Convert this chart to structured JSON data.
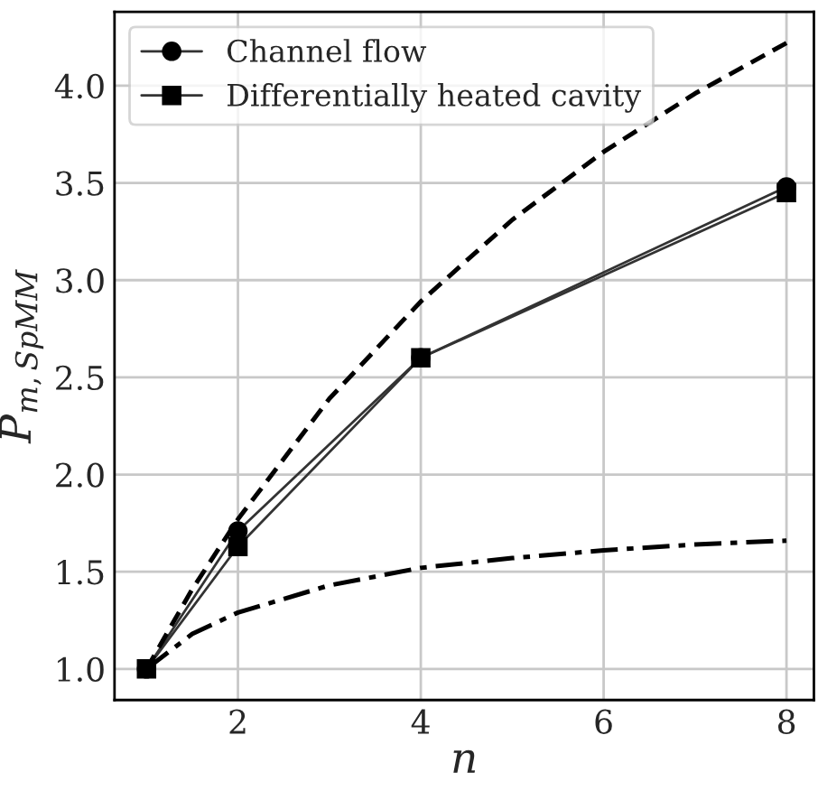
{
  "chart_data": {
    "type": "line",
    "xlabel": "n",
    "ylabel": "P$_{m,SpMM}$",
    "xlim": [
      0.65,
      8.3
    ],
    "ylim": [
      0.84,
      4.38
    ],
    "xticks": [
      2,
      4,
      6,
      8
    ],
    "yticks": [
      {
        "value": 1.0,
        "label": "1.0"
      },
      {
        "value": 1.5,
        "label": "1.5"
      },
      {
        "value": 2.0,
        "label": "2.0"
      },
      {
        "value": 2.5,
        "label": "2.5"
      },
      {
        "value": 3.0,
        "label": "3.0"
      },
      {
        "value": 3.5,
        "label": "3.5"
      },
      {
        "value": 4.0,
        "label": "4.0"
      }
    ],
    "grid": true,
    "legend": "top left",
    "series": [
      {
        "name": "Channel flow",
        "color": "#333333",
        "marker": "circle",
        "line_style": "solid",
        "x": [
          1,
          2,
          4,
          8
        ],
        "values": [
          1.0,
          1.71,
          2.6,
          3.48
        ]
      },
      {
        "name": "Differentially heated cavity",
        "color": "#333333",
        "marker": "square",
        "line_style": "solid",
        "x": [
          1,
          2,
          4,
          8
        ],
        "values": [
          1.0,
          1.63,
          2.6,
          3.45
        ]
      },
      {
        "color": "#000000",
        "marker": "none",
        "line_style": "dashed",
        "x": [
          1,
          1.5,
          2,
          3,
          4,
          5,
          6,
          7,
          8
        ],
        "values": [
          1.0,
          1.41,
          1.77,
          2.39,
          2.89,
          3.31,
          3.66,
          3.96,
          4.22
        ]
      },
      {
        "color": "#000000",
        "marker": "none",
        "line_style": "dashdot",
        "x": [
          1,
          1.5,
          2,
          3,
          4,
          5,
          6,
          7,
          8
        ],
        "values": [
          1.0,
          1.18,
          1.29,
          1.43,
          1.52,
          1.57,
          1.61,
          1.64,
          1.66
        ]
      }
    ]
  }
}
